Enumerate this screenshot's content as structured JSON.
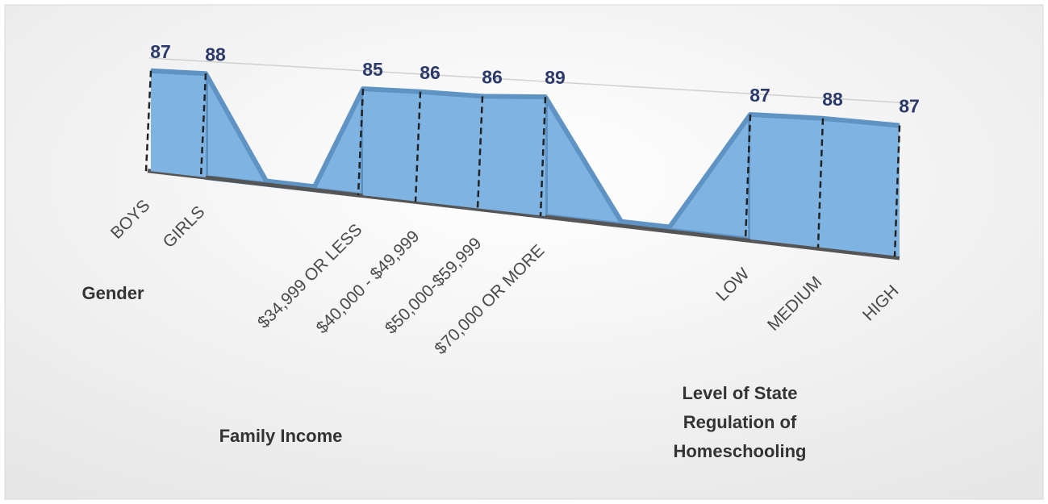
{
  "chart_data": {
    "type": "area",
    "categories": [
      "BOYS",
      "GIRLS",
      null,
      "$34,999 OR LESS",
      "$40,000 - $49,999",
      "$50,000-$59,999",
      "$70,000  OR MORE",
      null,
      "LOW",
      "MEDIUM",
      "HIGH"
    ],
    "values": [
      87,
      88,
      null,
      85,
      86,
      86,
      89,
      null,
      87,
      88,
      87
    ],
    "color": "#7fb3e2",
    "groups": [
      "Gender",
      "Family Income",
      "Level of State Regulation of Homeschooling"
    ]
  }
}
